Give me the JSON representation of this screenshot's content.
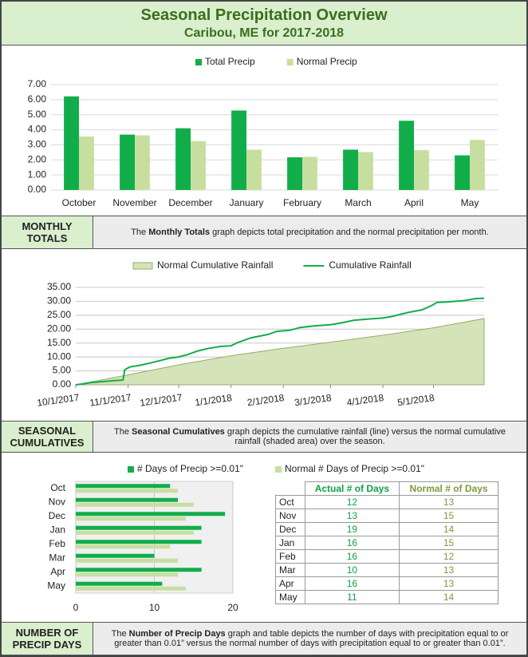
{
  "header": {
    "title": "Seasonal Precipitation Overview",
    "subtitle": "Caribou, ME for 2017-2018"
  },
  "chart_data": [
    {
      "type": "bar",
      "categories": [
        "October",
        "November",
        "December",
        "January",
        "February",
        "March",
        "April",
        "May"
      ],
      "series": [
        {
          "name": "Total Precip",
          "color": "#12ad4b",
          "values": [
            6.22,
            3.68,
            4.1,
            5.28,
            2.17,
            2.68,
            4.6,
            2.3
          ]
        },
        {
          "name": "Normal Precip",
          "color": "#c6dfa0",
          "values": [
            3.55,
            3.63,
            3.25,
            2.68,
            2.2,
            2.52,
            2.65,
            3.33
          ]
        }
      ],
      "ylim": [
        0,
        7
      ],
      "yticks": [
        {
          "value": 0,
          "label": "0.00"
        },
        {
          "value": 1,
          "label": "1.00"
        },
        {
          "value": 2,
          "label": "2.00"
        },
        {
          "value": 3,
          "label": "3.00"
        },
        {
          "value": 4,
          "label": "4.00"
        },
        {
          "value": 5,
          "label": "5.00"
        },
        {
          "value": 6,
          "label": "6.00"
        },
        {
          "value": 7,
          "label": "7.00"
        }
      ],
      "grid": true
    },
    {
      "type": "line",
      "series": [
        {
          "name": "Normal Cumulative Rainfall",
          "type": "area",
          "color": "#d5e3b8",
          "x": [
            "10/1/2017",
            "11/1/2017",
            "12/1/2017",
            "1/1/2018",
            "2/1/2018",
            "3/1/2018",
            "4/1/2018",
            "5/1/2018",
            "5/31/2018"
          ],
          "values": [
            0,
            3.55,
            7.18,
            10.43,
            13.11,
            15.31,
            17.83,
            20.48,
            23.81
          ]
        },
        {
          "name": "Cumulative Rainfall",
          "type": "line",
          "color": "#12ad4b",
          "x": [
            "10/1/2017",
            "10/5/2017",
            "10/10/2017",
            "10/16/2017",
            "10/20/2017",
            "10/24/2017",
            "10/29/2017",
            "10/30/2017",
            "11/2/2017",
            "11/8/2017",
            "11/14/2017",
            "11/20/2017",
            "11/25/2017",
            "12/1/2017",
            "12/6/2017",
            "12/12/2017",
            "12/18/2017",
            "12/26/2017",
            "1/1/2018",
            "1/5/2018",
            "1/13/2018",
            "1/23/2018",
            "1/28/2018",
            "2/5/2018",
            "2/11/2018",
            "2/20/2018",
            "3/1/2018",
            "3/8/2018",
            "3/15/2018",
            "3/25/2018",
            "4/1/2018",
            "4/6/2018",
            "4/16/2018",
            "4/24/2018",
            "4/30/2018",
            "5/3/2018",
            "5/10/2018",
            "5/20/2018",
            "5/26/2018",
            "5/31/2018"
          ],
          "values": [
            0,
            0.3,
            0.8,
            1.1,
            1.3,
            1.5,
            1.7,
            5.4,
            6.4,
            7.0,
            7.8,
            8.7,
            9.5,
            10.0,
            10.8,
            12.1,
            13.0,
            13.8,
            14.0,
            15.2,
            16.9,
            18.1,
            19.2,
            19.6,
            20.6,
            21.2,
            21.6,
            22.3,
            23.2,
            23.7,
            24.0,
            24.5,
            26.0,
            26.9,
            28.5,
            29.6,
            29.8,
            30.3,
            31.0,
            31.1
          ]
        }
      ],
      "xlim": [
        "10/1/2017",
        "5/31/2018"
      ],
      "xticks": [
        "10/1/2017",
        "11/1/2017",
        "12/1/2017",
        "1/1/2018",
        "2/1/2018",
        "3/1/2018",
        "4/1/2018",
        "5/1/2018"
      ],
      "ylim": [
        0,
        35
      ],
      "yticks": [
        {
          "value": 0,
          "label": "0.00"
        },
        {
          "value": 5,
          "label": "5.00"
        },
        {
          "value": 10,
          "label": "10.00"
        },
        {
          "value": 15,
          "label": "15.00"
        },
        {
          "value": 20,
          "label": "20.00"
        },
        {
          "value": 25,
          "label": "25.00"
        },
        {
          "value": 30,
          "label": "30.00"
        },
        {
          "value": 35,
          "label": "35.00"
        }
      ],
      "grid": true
    },
    {
      "type": "barh",
      "categories": [
        "Oct",
        "Nov",
        "Dec",
        "Jan",
        "Feb",
        "Mar",
        "Apr",
        "May"
      ],
      "series": [
        {
          "name": "# Days of Precip >=0.01\"",
          "color": "#12ad4b",
          "values": [
            12,
            13,
            19,
            16,
            16,
            10,
            16,
            11
          ]
        },
        {
          "name": "Normal # Days of Precip >=0.01\"",
          "color": "#c6dfa0",
          "values": [
            13,
            15,
            14,
            15,
            12,
            13,
            13,
            14
          ]
        }
      ],
      "xlim": [
        0,
        20
      ],
      "xticks": [
        0,
        10,
        20
      ],
      "grid": true
    }
  ],
  "table": {
    "columns": [
      "Actual # of Days",
      "Normal # of Days"
    ]
  },
  "sections": [
    {
      "label": "MONTHLY TOTALS",
      "text": [
        "The ",
        "Monthly Totals",
        " graph depicts total precipitation and the normal precipitation per month."
      ]
    },
    {
      "label": "SEASONAL CUMULATIVES",
      "text": [
        "The ",
        "Seasonal Cumulatives",
        " graph depicts the cumulative rainfall (line) versus the normal cumulative rainfall (shaded area) over the season."
      ]
    },
    {
      "label": "NUMBER OF PRECIP DAYS",
      "text": [
        "The ",
        "Number of Precip Days",
        " graph and table depicts the number of days with precipitation equal to or greater than 0.01” versus the normal number of days with precipitation equal to or greater than 0.01”."
      ]
    }
  ]
}
